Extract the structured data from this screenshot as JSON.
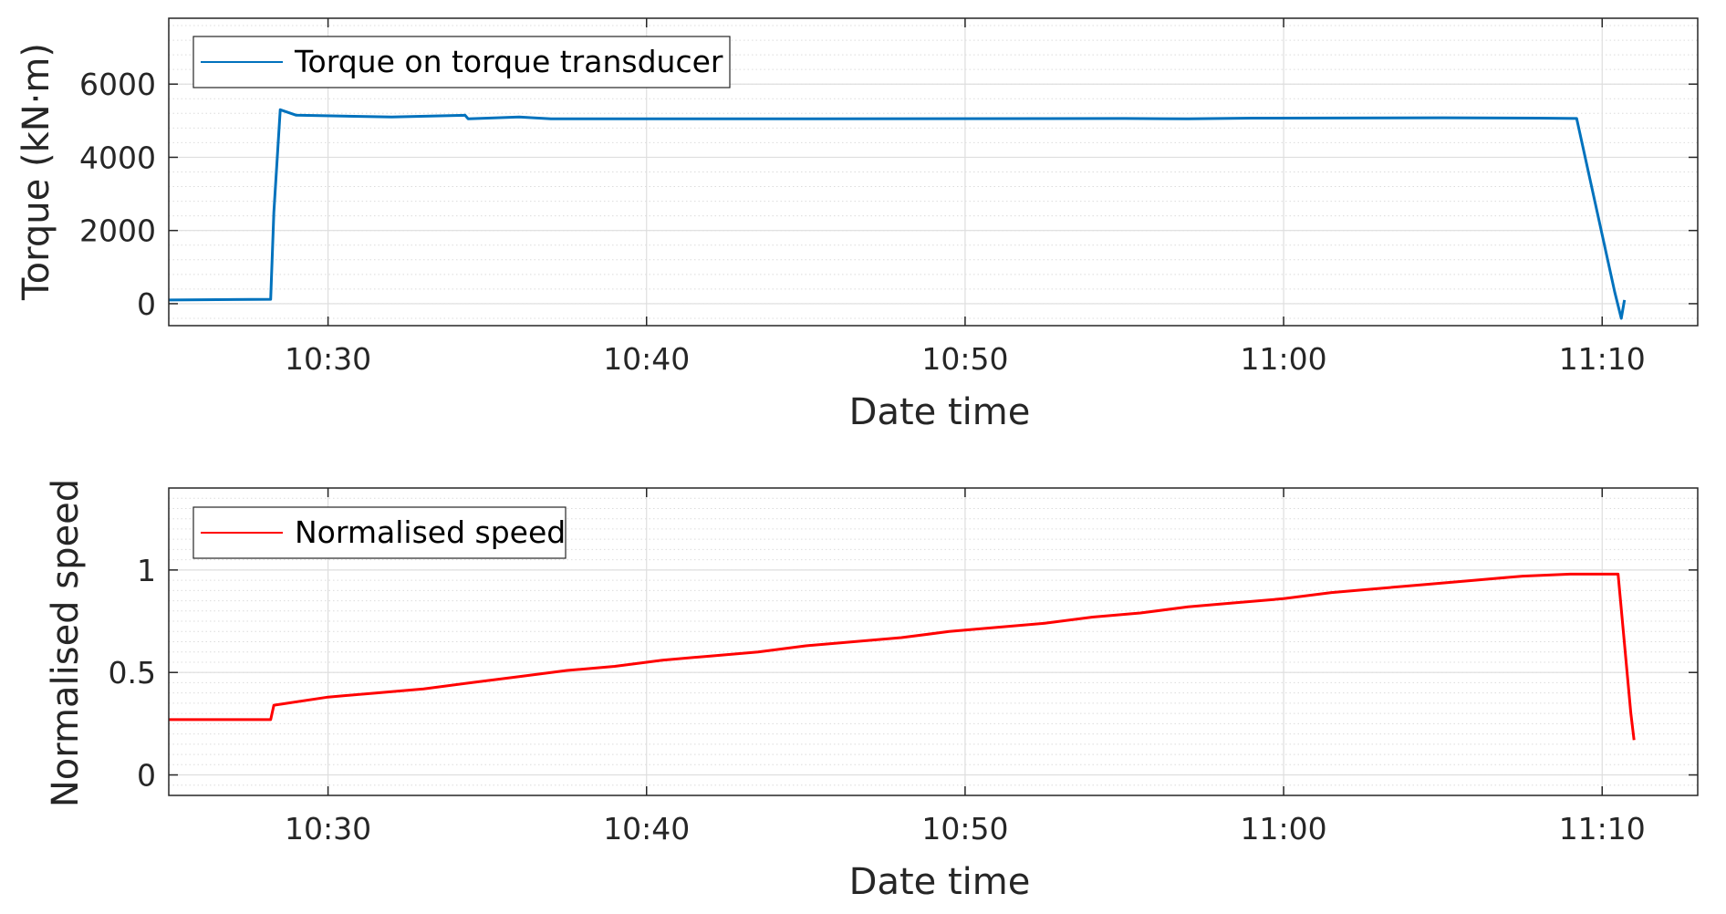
{
  "chart_data": [
    {
      "type": "line",
      "xlabel": "Date time",
      "ylabel": "Torque (kN·m)",
      "xlim": [
        "10:25",
        "11:13"
      ],
      "ylim": [
        -600,
        7800
      ],
      "x_ticks": [
        "10:30",
        "10:40",
        "10:50",
        "11:00",
        "11:10"
      ],
      "y_ticks": [
        "0",
        "2000",
        "4000",
        "6000"
      ],
      "grid": true,
      "minor_grid": true,
      "legend_position": "top-left",
      "series": [
        {
          "name": "Torque on torque transducer",
          "color": "#0072BD",
          "x": [
            "10:25",
            "10:28.2",
            "10:28.3",
            "10:28.5",
            "10:29",
            "10:32",
            "10:34.3",
            "10:34.4",
            "10:36",
            "10:37",
            "10:45",
            "10:55",
            "10:57",
            "10:59",
            "11:05",
            "11:08",
            "11:09.2",
            "11:10.4",
            "11:10.6",
            "11:10.7"
          ],
          "y": [
            100,
            120,
            2500,
            5300,
            5150,
            5100,
            5150,
            5050,
            5100,
            5050,
            5050,
            5060,
            5050,
            5070,
            5080,
            5070,
            5060,
            300,
            -400,
            100
          ]
        }
      ]
    },
    {
      "type": "line",
      "xlabel": "Date time",
      "ylabel": "Normalised speed",
      "xlim": [
        "10:25",
        "11:13"
      ],
      "ylim": [
        -0.1,
        1.4
      ],
      "x_ticks": [
        "10:30",
        "10:40",
        "10:50",
        "11:00",
        "11:10"
      ],
      "y_ticks": [
        "0",
        "0.5",
        "1"
      ],
      "grid": true,
      "minor_grid": true,
      "legend_position": "top-left",
      "series": [
        {
          "name": "Normalised speed",
          "color": "#FF0000",
          "x": [
            "10:25",
            "10:28.2",
            "10:28.3",
            "10:30",
            "10:31.5",
            "10:33",
            "10:34.5",
            "10:36",
            "10:37.5",
            "10:39",
            "10:40.5",
            "10:42",
            "10:43.5",
            "10:45",
            "10:46.5",
            "10:48",
            "10:49.5",
            "10:51",
            "10:52.5",
            "10:54",
            "10:55.5",
            "10:57",
            "10:58.5",
            "11:00",
            "11:01.5",
            "11:03",
            "11:04.5",
            "11:06",
            "11:07.5",
            "11:09",
            "11:10.5",
            "11:10.9",
            "11:11"
          ],
          "y": [
            0.27,
            0.27,
            0.34,
            0.38,
            0.4,
            0.42,
            0.45,
            0.48,
            0.51,
            0.53,
            0.56,
            0.58,
            0.6,
            0.63,
            0.65,
            0.67,
            0.7,
            0.72,
            0.74,
            0.77,
            0.79,
            0.82,
            0.84,
            0.86,
            0.89,
            0.91,
            0.93,
            0.95,
            0.97,
            0.98,
            0.98,
            0.3,
            0.17
          ]
        }
      ]
    }
  ]
}
